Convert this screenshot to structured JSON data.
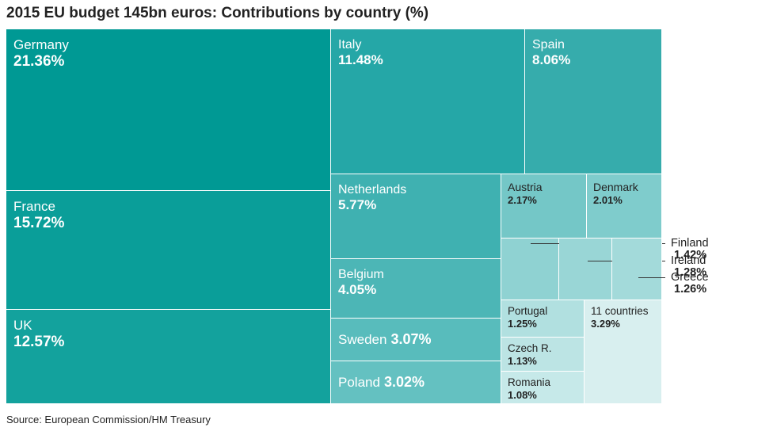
{
  "title": "2015 EU budget 145bn euros: Contributions by country (%)",
  "source": "Source: European Commission/HM Treasury",
  "chart_data": {
    "type": "treemap",
    "title": "2015 EU budget 145bn euros: Contributions by country (%)",
    "unit": "%",
    "items": [
      {
        "name": "Germany",
        "value": 21.36,
        "label": "21.36%",
        "color": "#009994"
      },
      {
        "name": "France",
        "value": 15.72,
        "label": "15.72%",
        "color": "#0a9e99"
      },
      {
        "name": "UK",
        "value": 12.57,
        "label": "12.57%",
        "color": "#13a29d"
      },
      {
        "name": "Italy",
        "value": 11.48,
        "label": "11.48%",
        "color": "#25a7a7"
      },
      {
        "name": "Spain",
        "value": 8.06,
        "label": "8.06%",
        "color": "#36acac"
      },
      {
        "name": "Netherlands",
        "value": 5.77,
        "label": "5.77%",
        "color": "#3fb1b1"
      },
      {
        "name": "Belgium",
        "value": 4.05,
        "label": "4.05%",
        "color": "#4cb6b6"
      },
      {
        "name": "Sweden",
        "value": 3.07,
        "label": "3.07%",
        "color": "#58bcbc"
      },
      {
        "name": "Poland",
        "value": 3.02,
        "label": "3.02%",
        "color": "#64c1c1"
      },
      {
        "name": "Austria",
        "value": 2.17,
        "label": "2.17%",
        "color": "#74c7c7"
      },
      {
        "name": "Denmark",
        "value": 2.01,
        "label": "2.01%",
        "color": "#7fcccc"
      },
      {
        "name": "Finland",
        "value": 1.42,
        "label": "1.42%",
        "color": "#8fd2d2"
      },
      {
        "name": "Ireland",
        "value": 1.28,
        "label": "1.28%",
        "color": "#99d6d6"
      },
      {
        "name": "Greece",
        "value": 1.26,
        "label": "1.26%",
        "color": "#a3dada"
      },
      {
        "name": "Portugal",
        "value": 1.25,
        "label": "1.25%",
        "color": "#b1e0e0"
      },
      {
        "name": "Czech R.",
        "value": 1.13,
        "label": "1.13%",
        "color": "#bce4e4"
      },
      {
        "name": "Romania",
        "value": 1.08,
        "label": "1.08%",
        "color": "#c6e9e9"
      },
      {
        "name": "11 countries",
        "value": 3.29,
        "label": "3.29%",
        "color": "#d8efef"
      }
    ]
  }
}
